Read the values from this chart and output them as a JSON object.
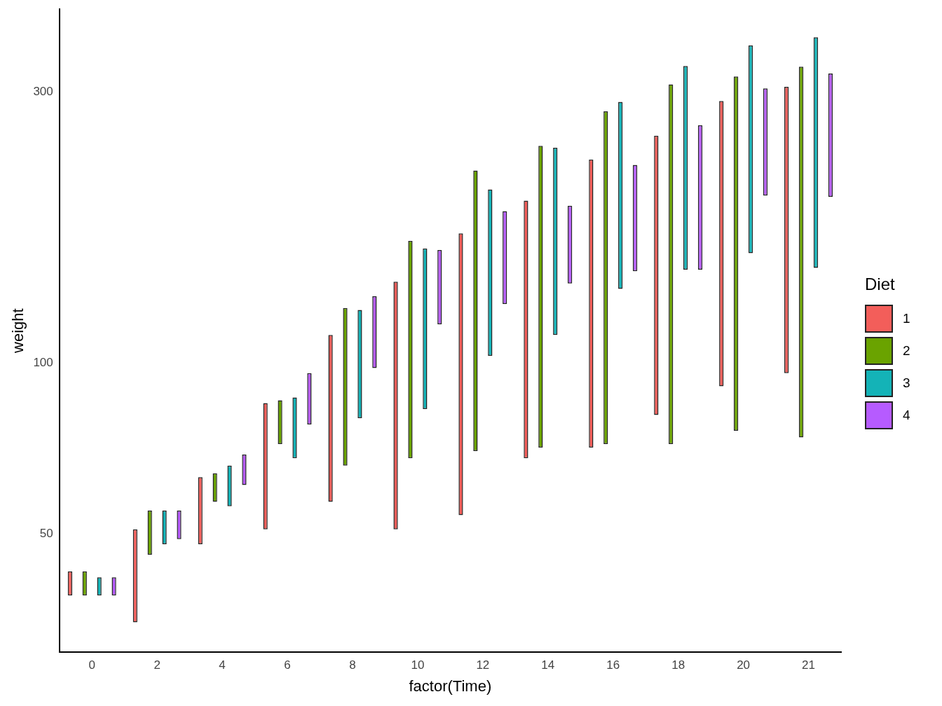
{
  "chart_data": {
    "type": "bar",
    "xlabel": "factor(Time)",
    "ylabel": "weight",
    "legend_title": "Diet",
    "categories": [
      "0",
      "2",
      "4",
      "6",
      "8",
      "10",
      "12",
      "14",
      "16",
      "18",
      "20",
      "21"
    ],
    "series": [
      {
        "name": "1",
        "color": "#f35e5a",
        "base": [
          39,
          35,
          48,
          51,
          57,
          51,
          54,
          68,
          71,
          81,
          91,
          96
        ],
        "values": [
          4,
          16,
          15,
          34,
          55,
          88,
          115,
          125,
          157,
          170,
          198,
          210
        ]
      },
      {
        "name": "2",
        "color": "#6aa300",
        "base": [
          39,
          46,
          57,
          72,
          66,
          68,
          70,
          71,
          72,
          72,
          76,
          74
        ],
        "values": [
          4,
          9,
          7,
          14,
          59,
          96,
          148,
          170,
          205,
          237,
          243,
          258
        ]
      },
      {
        "name": "3",
        "color": "#14b3b7",
        "base": [
          39,
          48,
          56,
          68,
          80,
          83,
          103,
          112,
          135,
          146,
          156,
          147
        ],
        "values": [
          3,
          7,
          10,
          19,
          44,
          76,
          99,
          127,
          153,
          187,
          206,
          227
        ]
      },
      {
        "name": "4",
        "color": "#b65bff",
        "base": [
          39,
          49,
          61,
          78,
          98,
          117,
          127,
          138,
          145,
          146,
          197,
          196
        ],
        "values": [
          3,
          6,
          8,
          18,
          33,
          41,
          58,
          51,
          78,
          116,
          107,
          127
        ]
      }
    ],
    "log": true,
    "ylim": [
      31,
      419
    ],
    "yticks": [
      50,
      100,
      300
    ],
    "grid": false,
    "legend": "right"
  }
}
